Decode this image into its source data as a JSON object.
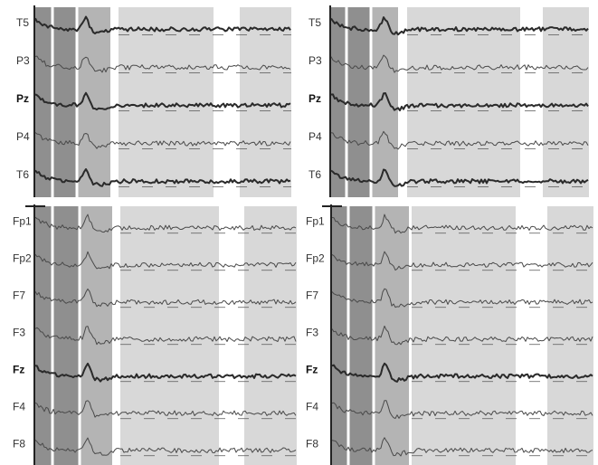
{
  "chart_data": {
    "type": "line",
    "title": "",
    "colors": {
      "band_dark": "#8f8f8f",
      "band_mid": "#b4b4b4",
      "band_light": "#d8d8d8",
      "trace": "#4a4a4a",
      "trace_bold": "#2a2a2a",
      "separator": "#ffffff"
    },
    "panels": [
      {
        "name": "posterior-left",
        "channels": [
          {
            "label": "T5",
            "bold": false,
            "thick": true
          },
          {
            "label": "P3",
            "bold": false,
            "thick": false
          },
          {
            "label": "Pz",
            "bold": true,
            "thick": true
          },
          {
            "label": "P4",
            "bold": false,
            "thick": false
          },
          {
            "label": "T6",
            "bold": false,
            "thick": true
          }
        ]
      },
      {
        "name": "posterior-right",
        "channels": [
          {
            "label": "T5",
            "bold": false,
            "thick": true
          },
          {
            "label": "P3",
            "bold": false,
            "thick": false
          },
          {
            "label": "Pz",
            "bold": true,
            "thick": true
          },
          {
            "label": "P4",
            "bold": false,
            "thick": false
          },
          {
            "label": "T6",
            "bold": false,
            "thick": true
          }
        ]
      },
      {
        "name": "anterior-left",
        "channels": [
          {
            "label": "Fp1",
            "bold": false,
            "thick": false
          },
          {
            "label": "Fp2",
            "bold": false,
            "thick": false
          },
          {
            "label": "F7",
            "bold": false,
            "thick": false
          },
          {
            "label": "F3",
            "bold": false,
            "thick": false
          },
          {
            "label": "Fz",
            "bold": true,
            "thick": true
          },
          {
            "label": "F4",
            "bold": false,
            "thick": false
          },
          {
            "label": "F8",
            "bold": false,
            "thick": false
          }
        ]
      },
      {
        "name": "anterior-right",
        "channels": [
          {
            "label": "Fp1",
            "bold": false,
            "thick": false
          },
          {
            "label": "Fp2",
            "bold": false,
            "thick": false
          },
          {
            "label": "F7",
            "bold": false,
            "thick": false
          },
          {
            "label": "F3",
            "bold": false,
            "thick": false
          },
          {
            "label": "Fz",
            "bold": true,
            "thick": true
          },
          {
            "label": "F4",
            "bold": false,
            "thick": false
          },
          {
            "label": "F8",
            "bold": false,
            "thick": false
          }
        ]
      }
    ]
  }
}
